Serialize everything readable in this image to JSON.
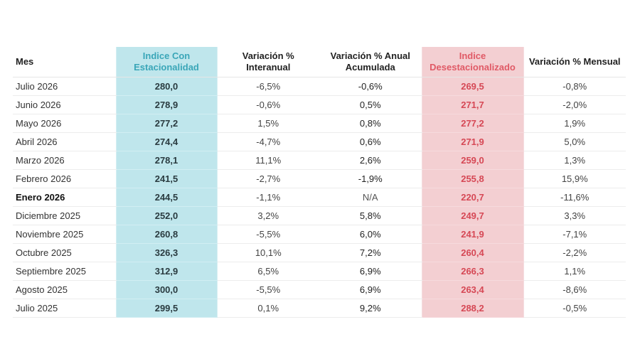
{
  "chart_data": {
    "type": "table",
    "headers": {
      "mes": "Mes",
      "indice_con": "Indice Con Estacionalidad",
      "var_interanual": "Variación % Interanual",
      "var_acumulada": "Variación % Anual Acumulada",
      "indice_des": "Indice Desestacionalizado",
      "var_mensual": "Variación % Mensual"
    },
    "rows": [
      {
        "mes": "Julio 2026",
        "indice_con": "280,0",
        "var_interanual": "-6,5%",
        "var_acumulada": "-0,6%",
        "indice_des": "269,5",
        "var_mensual": "-0,8%"
      },
      {
        "mes": "Junio 2026",
        "indice_con": "278,9",
        "var_interanual": "-0,6%",
        "var_acumulada": "0,5%",
        "indice_des": "271,7",
        "var_mensual": "-2,0%"
      },
      {
        "mes": "Mayo 2026",
        "indice_con": "277,2",
        "var_interanual": "1,5%",
        "var_acumulada": "0,8%",
        "indice_des": "277,2",
        "var_mensual": "1,9%"
      },
      {
        "mes": "Abril 2026",
        "indice_con": "274,4",
        "var_interanual": "-4,7%",
        "var_acumulada": "0,6%",
        "indice_des": "271,9",
        "var_mensual": "5,0%"
      },
      {
        "mes": "Marzo 2026",
        "indice_con": "278,1",
        "var_interanual": "11,1%",
        "var_acumulada": "2,6%",
        "indice_des": "259,0",
        "var_mensual": "1,3%"
      },
      {
        "mes": "Febrero 2026",
        "indice_con": "241,5",
        "var_interanual": "-2,7%",
        "var_acumulada": "-1,9%",
        "indice_des": "255,8",
        "var_mensual": "15,9%"
      },
      {
        "mes": "Enero 2026",
        "indice_con": "244,5",
        "var_interanual": "-1,1%",
        "var_acumulada": "N/A",
        "indice_des": "220,7",
        "var_mensual": "-11,6%"
      },
      {
        "mes": "Diciembre 2025",
        "indice_con": "252,0",
        "var_interanual": "3,2%",
        "var_acumulada": "5,8%",
        "indice_des": "249,7",
        "var_mensual": "3,3%"
      },
      {
        "mes": "Noviembre 2025",
        "indice_con": "260,8",
        "var_interanual": "-5,5%",
        "var_acumulada": "6,0%",
        "indice_des": "241,9",
        "var_mensual": "-7,1%"
      },
      {
        "mes": "Octubre 2025",
        "indice_con": "326,3",
        "var_interanual": "10,1%",
        "var_acumulada": "7,2%",
        "indice_des": "260,4",
        "var_mensual": "-2,2%"
      },
      {
        "mes": "Septiembre 2025",
        "indice_con": "312,9",
        "var_interanual": "6,5%",
        "var_acumulada": "6,9%",
        "indice_des": "266,3",
        "var_mensual": "1,1%"
      },
      {
        "mes": "Agosto 2025",
        "indice_con": "300,0",
        "var_interanual": "-5,5%",
        "var_acumulada": "6,9%",
        "indice_des": "263,4",
        "var_mensual": "-8,6%"
      },
      {
        "mes": "Julio 2025",
        "indice_con": "299,5",
        "var_interanual": "0,1%",
        "var_acumulada": "9,2%",
        "indice_des": "288,2",
        "var_mensual": "-0,5%"
      }
    ],
    "bold_row_mes": "Enero 2026",
    "colors": {
      "indice_con_bg": "#bfe6ec",
      "indice_con_header": "#3aa6b8",
      "indice_des_bg": "#f3cfd2",
      "indice_des_header": "#e05a66",
      "indice_des_value": "#d64855"
    }
  }
}
